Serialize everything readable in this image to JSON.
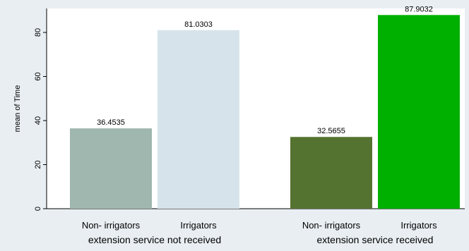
{
  "chart_data": {
    "type": "bar",
    "ylabel": "mean of Time",
    "ylim": [
      0,
      88
    ],
    "yticks": [
      0,
      20,
      40,
      60,
      80
    ],
    "grid": false,
    "groups": [
      {
        "label": "extension service not  received",
        "bars": [
          {
            "category": "Non- irrigators",
            "value": 36.4535,
            "value_label": "36.4535",
            "color": "#9fb7ae"
          },
          {
            "category": "Irrigators",
            "value": 81.0303,
            "value_label": "81.0303",
            "color": "#d6e3ea"
          }
        ]
      },
      {
        "label": "extension service  received",
        "bars": [
          {
            "category": "Non- irrigators",
            "value": 32.5655,
            "value_label": "32.5655",
            "color": "#557330"
          },
          {
            "category": "Irrigators",
            "value": 87.9032,
            "value_label": "87.9032",
            "color": "#00b000"
          }
        ]
      }
    ]
  },
  "colors": {
    "background": "#e8eef2",
    "plot_area": "#ffffff",
    "axis": "#000000"
  }
}
